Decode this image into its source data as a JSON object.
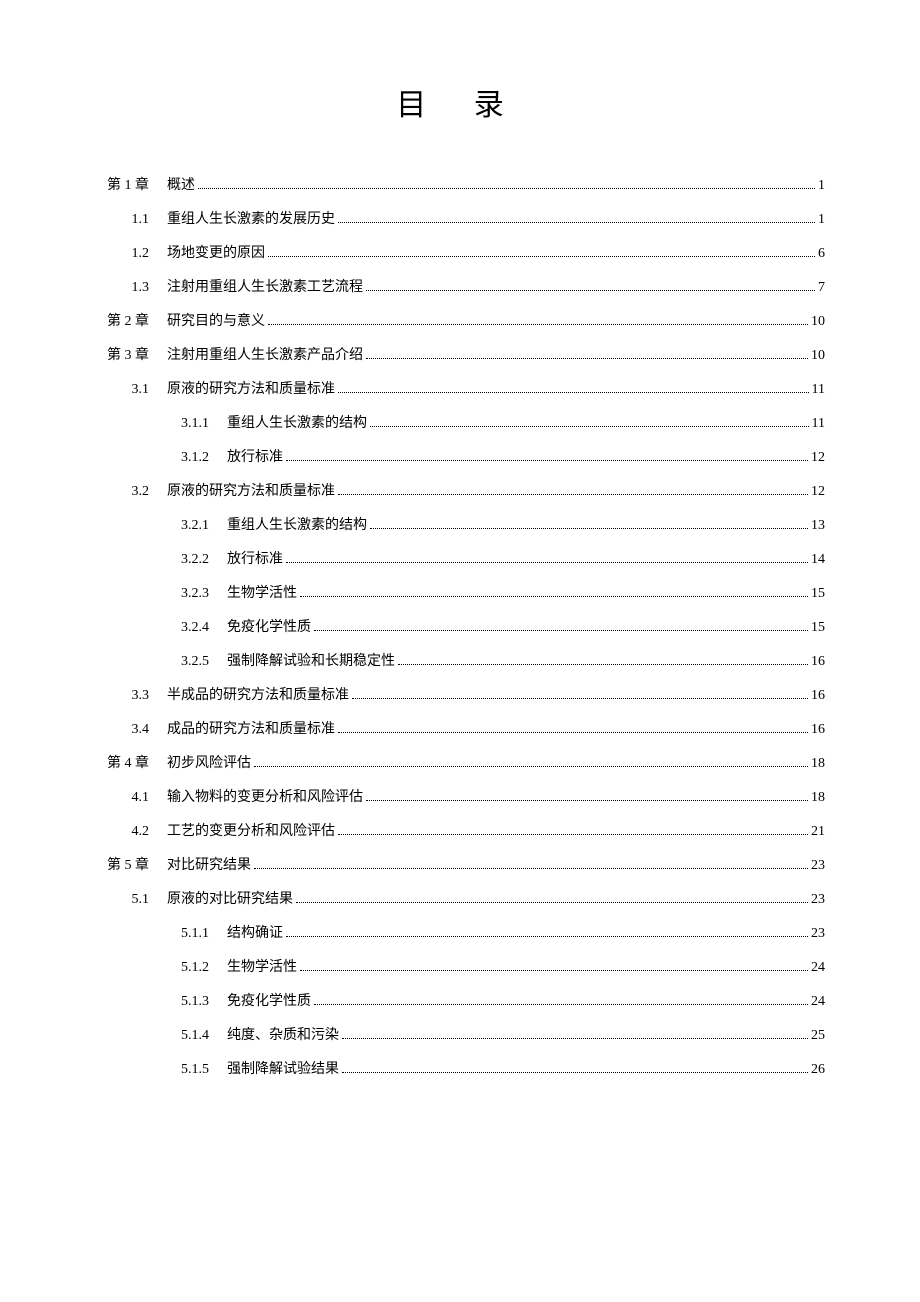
{
  "title": "目 录",
  "entries": [
    {
      "label": "第 1 章",
      "text": "概述",
      "page": "1",
      "level": "chapter"
    },
    {
      "label": "1.1",
      "text": "重组人生长激素的发展历史",
      "page": "1",
      "level": "section"
    },
    {
      "label": "1.2",
      "text": "场地变更的原因",
      "page": "6",
      "level": "section"
    },
    {
      "label": "1.3",
      "text": "注射用重组人生长激素工艺流程",
      "page": "7",
      "level": "section"
    },
    {
      "label": "第 2 章",
      "text": "研究目的与意义",
      "page": "10",
      "level": "chapter"
    },
    {
      "label": "第 3 章",
      "text": "注射用重组人生长激素产品介绍",
      "page": "10",
      "level": "chapter"
    },
    {
      "label": "3.1",
      "text": "原液的研究方法和质量标准",
      "page": "11",
      "level": "section"
    },
    {
      "label": "3.1.1",
      "text": "重组人生长激素的结构",
      "page": "11",
      "level": "subsection"
    },
    {
      "label": "3.1.2",
      "text": "放行标准",
      "page": "12",
      "level": "subsection"
    },
    {
      "label": "3.2",
      "text": "原液的研究方法和质量标准",
      "page": "12",
      "level": "section"
    },
    {
      "label": "3.2.1",
      "text": "重组人生长激素的结构",
      "page": "13",
      "level": "subsection"
    },
    {
      "label": "3.2.2",
      "text": "放行标准",
      "page": "14",
      "level": "subsection"
    },
    {
      "label": "3.2.3",
      "text": "生物学活性",
      "page": "15",
      "level": "subsection"
    },
    {
      "label": "3.2.4",
      "text": "免疫化学性质",
      "page": "15",
      "level": "subsection"
    },
    {
      "label": "3.2.5",
      "text": "强制降解试验和长期稳定性",
      "page": "16",
      "level": "subsection"
    },
    {
      "label": "3.3",
      "text": "半成品的研究方法和质量标准",
      "page": "16",
      "level": "section"
    },
    {
      "label": "3.4",
      "text": "成品的研究方法和质量标准",
      "page": "16",
      "level": "section"
    },
    {
      "label": "第 4 章",
      "text": "初步风险评估",
      "page": "18",
      "level": "chapter"
    },
    {
      "label": "4.1",
      "text": "输入物料的变更分析和风险评估",
      "page": "18",
      "level": "section"
    },
    {
      "label": "4.2",
      "text": "工艺的变更分析和风险评估",
      "page": "21",
      "level": "section"
    },
    {
      "label": "第 5 章",
      "text": "对比研究结果",
      "page": "23",
      "level": "chapter"
    },
    {
      "label": "5.1",
      "text": "原液的对比研究结果",
      "page": "23",
      "level": "section"
    },
    {
      "label": "5.1.1",
      "text": "结构确证",
      "page": "23",
      "level": "subsection"
    },
    {
      "label": "5.1.2",
      "text": "生物学活性",
      "page": "24",
      "level": "subsection"
    },
    {
      "label": "5.1.3",
      "text": "免疫化学性质",
      "page": "24",
      "level": "subsection"
    },
    {
      "label": "5.1.4",
      "text": "纯度、杂质和污染",
      "page": "25",
      "level": "subsection"
    },
    {
      "label": "5.1.5",
      "text": "强制降解试验结果",
      "page": "26",
      "level": "subsection"
    }
  ]
}
